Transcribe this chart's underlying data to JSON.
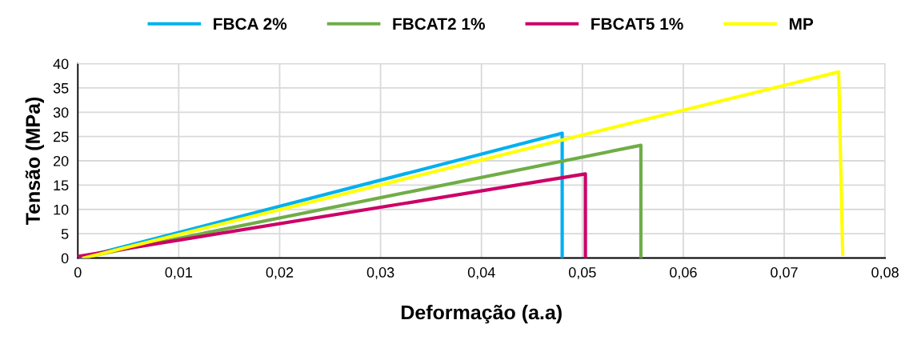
{
  "chart_data": {
    "type": "line",
    "xlabel": "Deformação (a.a)",
    "ylabel": "Tensão (MPa)",
    "xlim": [
      0,
      0.08
    ],
    "xticks": [
      {
        "value": 0,
        "label": "0"
      },
      {
        "value": 0.01,
        "label": "0,01"
      },
      {
        "value": 0.02,
        "label": "0,02"
      },
      {
        "value": 0.03,
        "label": "0,03"
      },
      {
        "value": 0.04,
        "label": "0,04"
      },
      {
        "value": 0.05,
        "label": "0,05"
      },
      {
        "value": 0.06,
        "label": "0,06"
      },
      {
        "value": 0.07,
        "label": "0,07"
      },
      {
        "value": 0.08,
        "label": "0,08"
      }
    ],
    "ylim": [
      0,
      40
    ],
    "yticks": [
      0,
      5,
      10,
      15,
      20,
      25,
      30,
      35,
      40
    ],
    "grid": true,
    "legend": "top",
    "marker": "none",
    "line_style": "solid",
    "series": [
      {
        "name": "FBCA 2%",
        "color": "#00b0f0",
        "x": [
          0.0002,
          0.048,
          0.048
        ],
        "values": [
          0,
          25.7,
          0
        ]
      },
      {
        "name": "FBCAT2 1%",
        "color": "#70ad47",
        "x": [
          0.0003,
          0.0558,
          0.0558
        ],
        "values": [
          0,
          23.2,
          0
        ]
      },
      {
        "name": "FBCAT5 1%",
        "color": "#cc0066",
        "x": [
          0,
          0.0503,
          0.0503
        ],
        "values": [
          0.3,
          17.3,
          0
        ]
      },
      {
        "name": "MP",
        "color": "#ffff00",
        "x": [
          0.0006,
          0.0754,
          0.0758
        ],
        "values": [
          0,
          38.3,
          0.8
        ]
      }
    ]
  }
}
